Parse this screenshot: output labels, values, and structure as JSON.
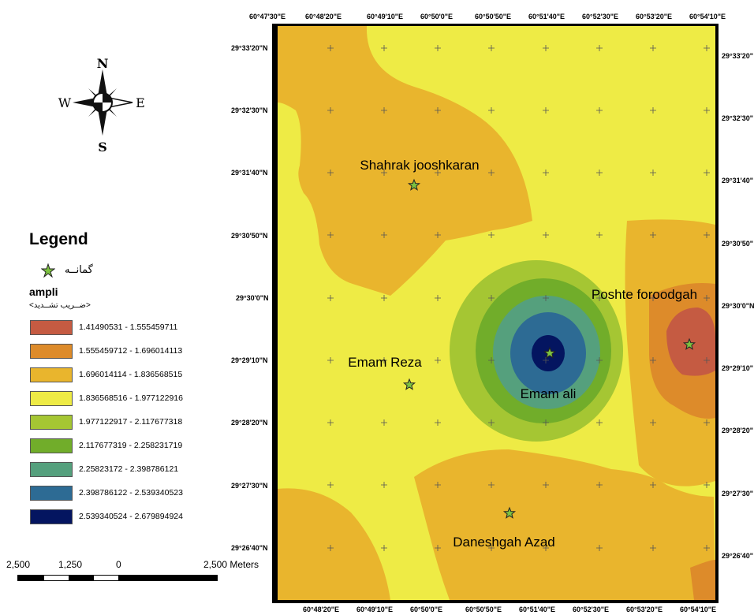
{
  "north_arrow": {
    "n": "N",
    "s": "S",
    "e": "E",
    "w": "W"
  },
  "legend": {
    "title": "Legend",
    "point_label": "گمانــه",
    "field_name": "ampli",
    "field_subtitle": "<ضــریب تشــدید>",
    "classes": [
      {
        "label": "1.41490531 - 1.555459711",
        "color": "#c55b42"
      },
      {
        "label": "1.555459712 - 1.696014113",
        "color": "#dd8b2a"
      },
      {
        "label": "1.696014114 - 1.836568515",
        "color": "#e9b52d"
      },
      {
        "label": "1.836568516 - 1.977122916",
        "color": "#eeeb45"
      },
      {
        "label": "1.977122917 - 2.117677318",
        "color": "#a5c633"
      },
      {
        "label": "2.117677319 - 2.258231719",
        "color": "#71ad2a"
      },
      {
        "label": "2.25823172 - 2.398786121",
        "color": "#55a07d"
      },
      {
        "label": "2.398786122 - 2.539340523",
        "color": "#2d6b94"
      },
      {
        "label": "2.539340524 - 2.679894924",
        "color": "#041560"
      }
    ]
  },
  "scale_bar": {
    "labels": [
      "2,500",
      "1,250",
      "0",
      "2,500 Meters"
    ]
  },
  "map": {
    "top_ticks": [
      "60°47'30\"E",
      "60°48'20\"E",
      "60°49'10\"E",
      "60°50'0\"E",
      "60°50'50\"E",
      "60°51'40\"E",
      "60°52'30\"E",
      "60°53'20\"E",
      "60°54'10\"E"
    ],
    "bottom_ticks": [
      "60°48'20\"E",
      "60°49'10\"E",
      "60°50'0\"E",
      "60°50'50\"E",
      "60°51'40\"E",
      "60°52'30\"E",
      "60°53'20\"E",
      "60°54'10\"E"
    ],
    "left_ticks": [
      "29°33'20\"N",
      "29°32'30\"N",
      "29°31'40\"N",
      "29°30'50\"N",
      "29°30'0\"N",
      "29°29'10\"N",
      "29°28'20\"N",
      "29°27'30\"N",
      "29°26'40\"N"
    ],
    "right_ticks": [
      "29°33'20\"",
      "29°32'30\"",
      "29°31'40\"",
      "29°30'50\"",
      "29°30'0\"N",
      "29°29'10\"",
      "29°28'20\"",
      "29°27'30\"",
      "29°26'40\""
    ],
    "places": [
      {
        "name": "Shahrak jooshkaran"
      },
      {
        "name": "Poshte foroodgah"
      },
      {
        "name": "Emam Reza"
      },
      {
        "name": "Emam ali"
      },
      {
        "name": "Daneshgah Azad"
      }
    ]
  }
}
